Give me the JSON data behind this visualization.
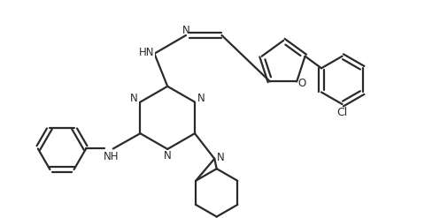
{
  "background_color": "#ffffff",
  "line_color": "#2a2a2a",
  "line_width": 1.6,
  "font_size": 8.5,
  "figsize": [
    4.97,
    2.47
  ],
  "dpi": 100,
  "xlim": [
    0,
    10
  ],
  "ylim": [
    0,
    5
  ]
}
